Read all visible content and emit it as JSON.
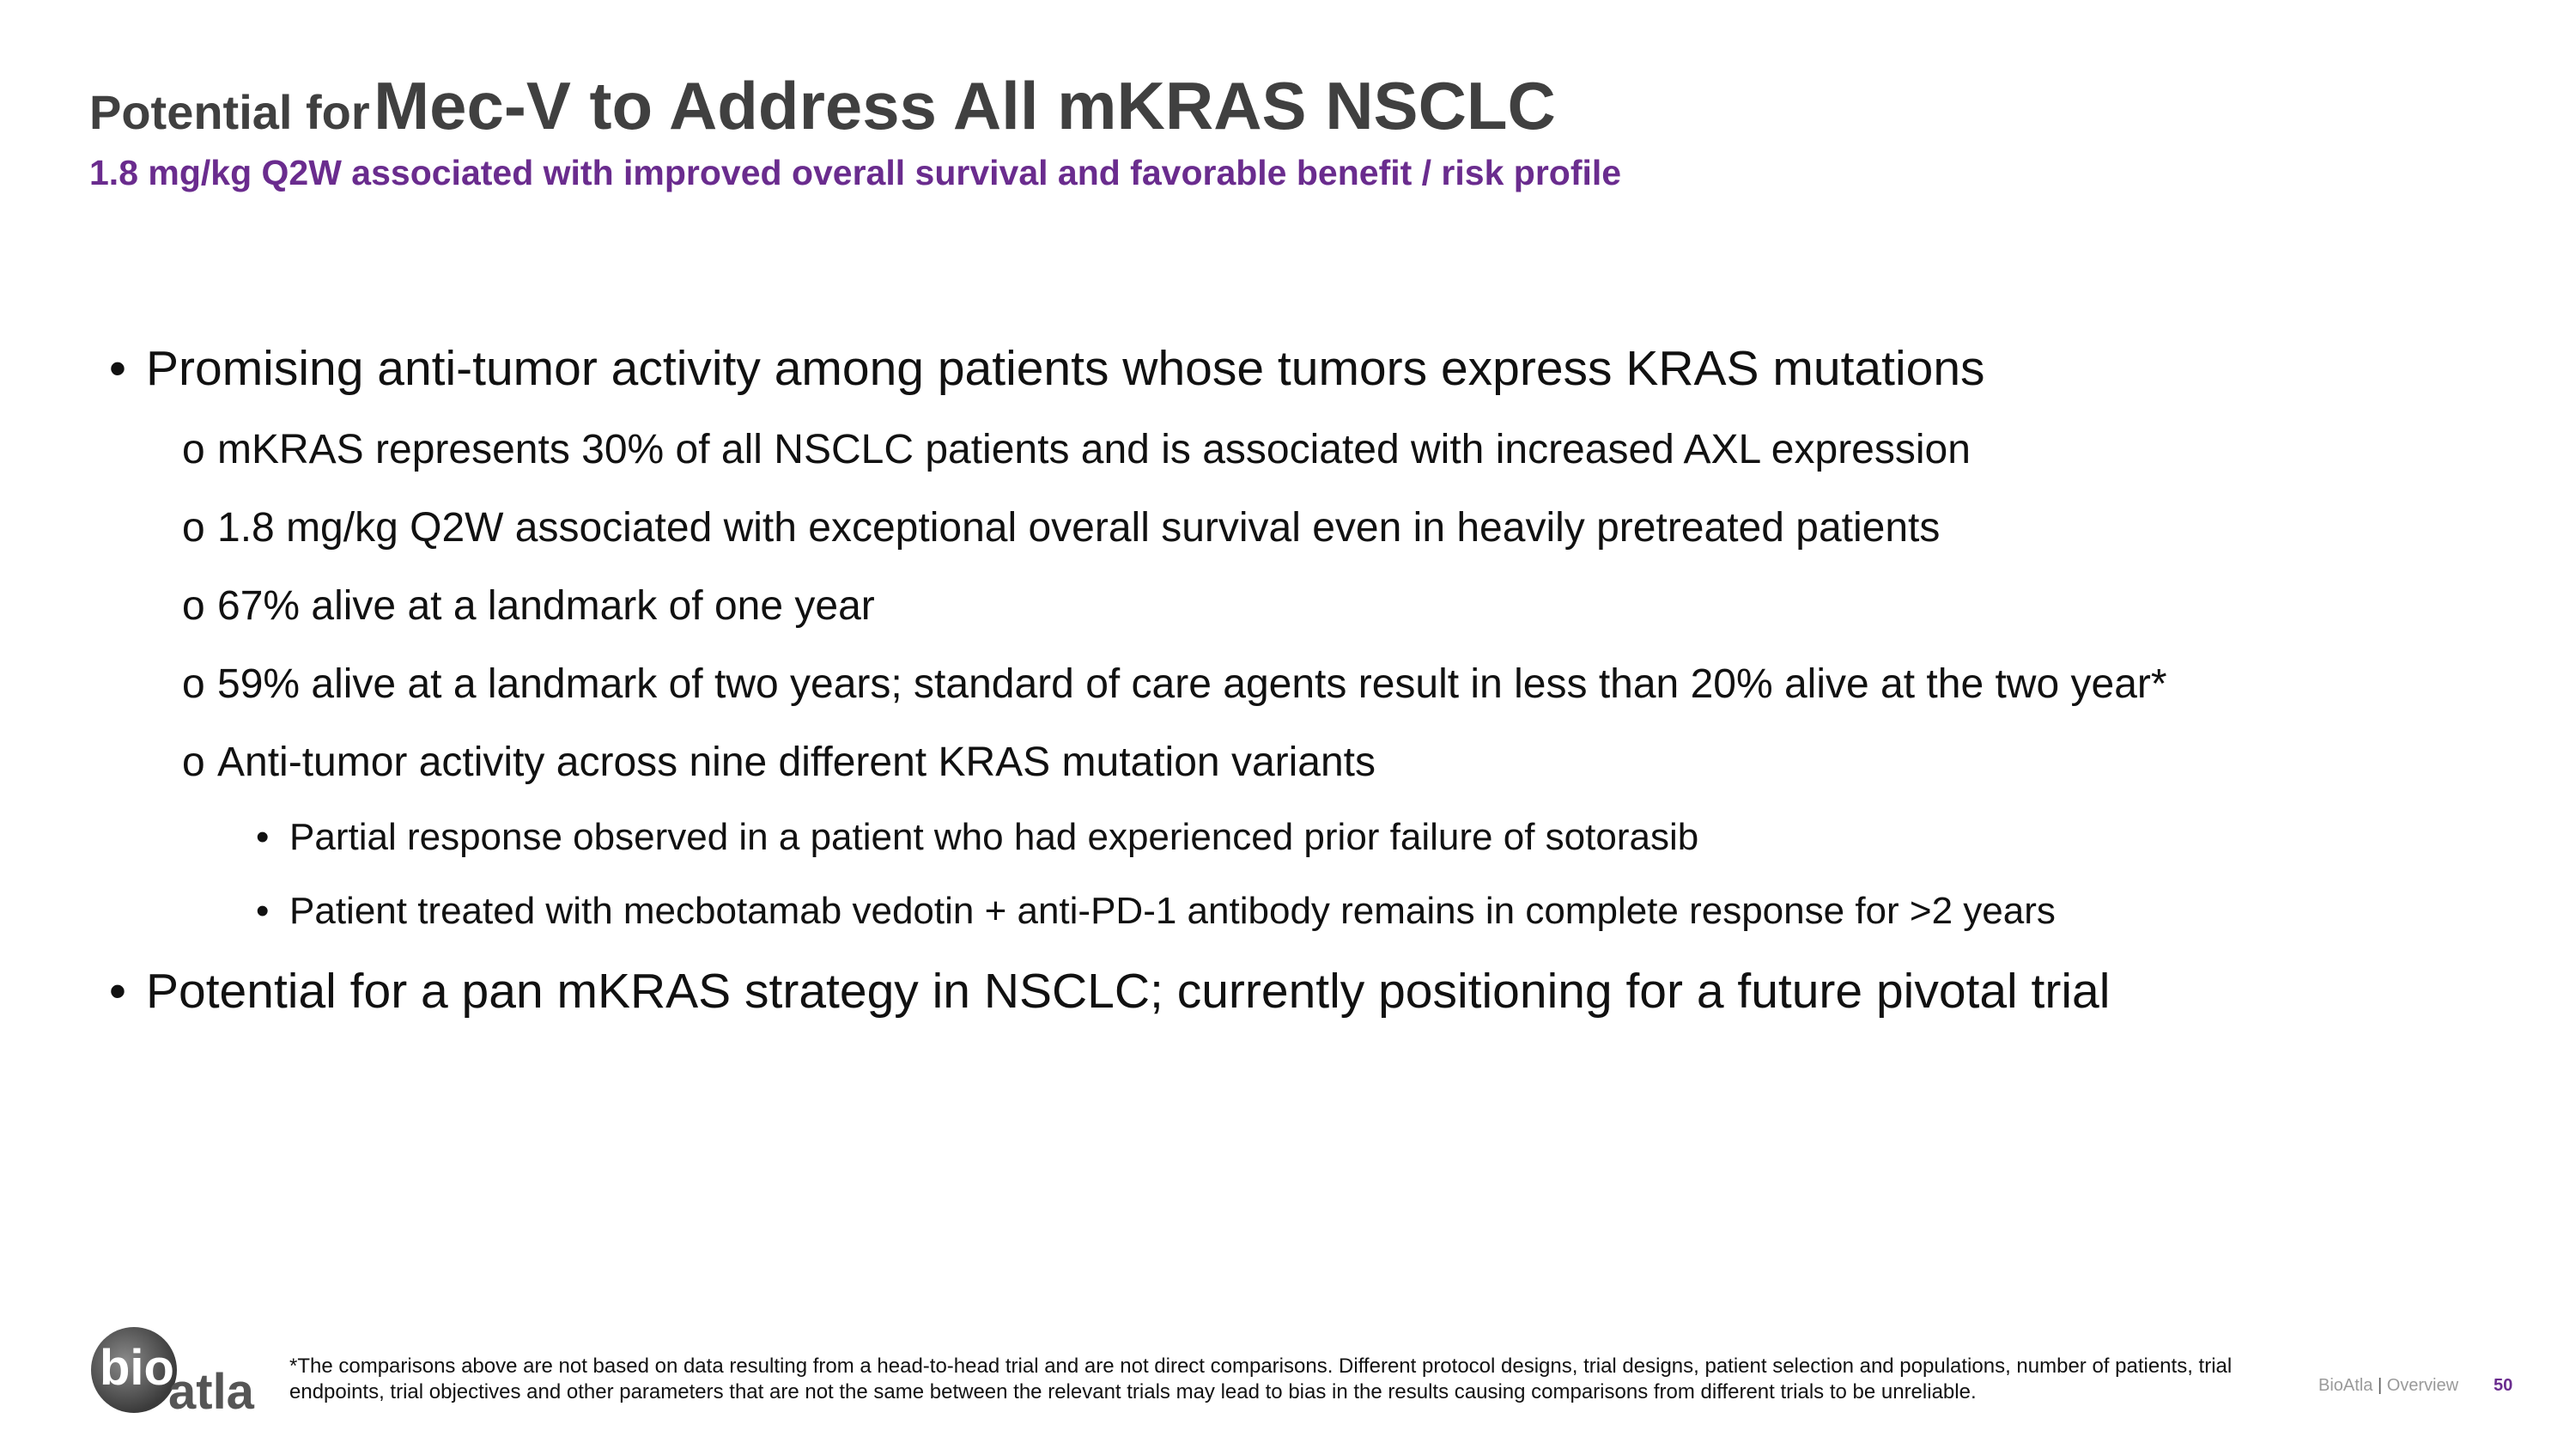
{
  "slide": {
    "title_prefix": "Potential for",
    "title_main": "Mec-V to Address All mKRAS NSCLC",
    "subtitle": "1.8 mg/kg Q2W associated with improved overall survival and favorable benefit / risk profile",
    "bullets": [
      {
        "level": 1,
        "marker": "•",
        "text": "Promising anti-tumor activity among patients whose tumors express KRAS mutations"
      },
      {
        "level": 2,
        "marker": "o",
        "text": "mKRAS represents 30% of all NSCLC patients and is associated with increased AXL expression"
      },
      {
        "level": 2,
        "marker": "o",
        "text": "1.8 mg/kg Q2W associated with exceptional overall survival even in heavily pretreated patients"
      },
      {
        "level": 2,
        "marker": "o",
        "text": "67% alive at a landmark of one year"
      },
      {
        "level": 2,
        "marker": "o",
        "text": "59% alive at a landmark of two years; standard of care agents result in less than 20% alive at the two year*"
      },
      {
        "level": 2,
        "marker": "o",
        "text": "Anti-tumor activity across nine different KRAS mutation variants"
      },
      {
        "level": 3,
        "marker": "•",
        "text": "Partial response observed in a patient who had experienced prior failure of sotorasib"
      },
      {
        "level": 3,
        "marker": "•",
        "text": "Patient treated with mecbotamab vedotin + anti-PD-1 antibody remains in complete response for >2 years"
      },
      {
        "level": 1,
        "marker": "•",
        "text": "Potential for a pan mKRAS strategy in NSCLC; currently positioning for a future pivotal trial"
      }
    ]
  },
  "footer": {
    "logo_text": "bioatla",
    "footnote": "*The comparisons above are not based on data resulting from a head-to-head trial and are not direct comparisons. Different protocol designs, trial designs, patient selection and populations, number of patients, trial endpoints, trial objectives and other parameters that are not the same between the relevant trials may lead to bias in the results causing comparisons from different trials to be unreliable.",
    "company": "BioAtla",
    "separator": "|",
    "section": "Overview",
    "page_number": "50"
  },
  "colors": {
    "accent_purple": "#6a2c8e",
    "title_gray": "#404040"
  }
}
